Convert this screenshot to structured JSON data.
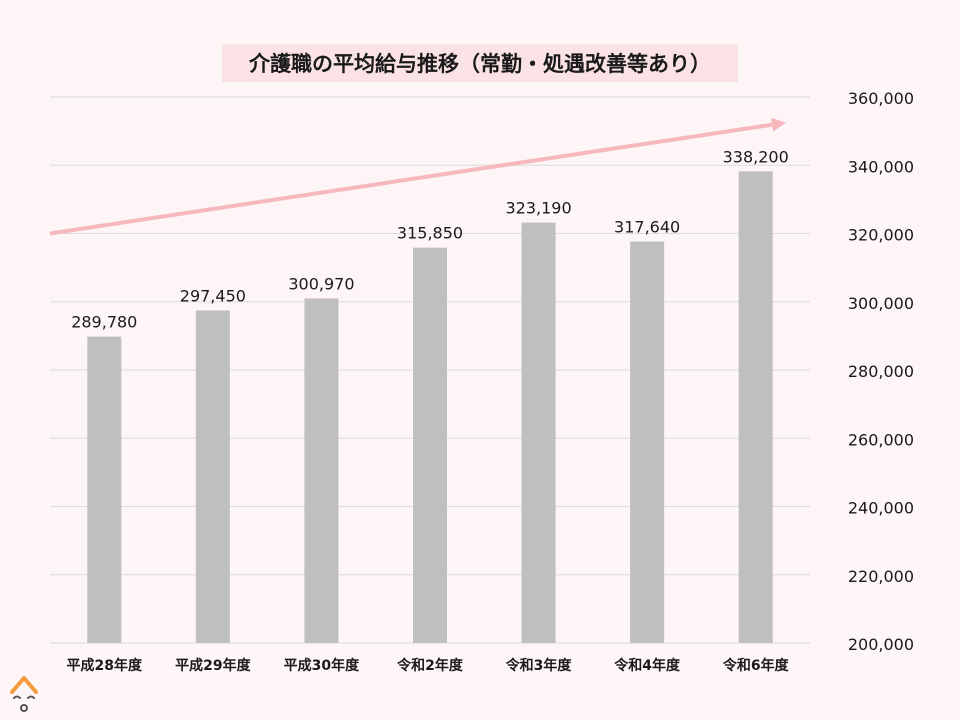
{
  "chart_data": {
    "type": "bar",
    "title": "介護職の平均給与推移（常勤・処遇改善等あり）",
    "categories": [
      "平成28年度",
      "平成29年度",
      "平成30年度",
      "令和2年度",
      "令和3年度",
      "令和4年度",
      "令和6年度"
    ],
    "values": [
      289780,
      297450,
      300970,
      315850,
      323190,
      317640,
      338200
    ],
    "value_labels": [
      "289,780",
      "297,450",
      "300,970",
      "315,850",
      "323,190",
      "317,640",
      "338,200"
    ],
    "y_ticks": [
      "200,000",
      "220,000",
      "240,000",
      "260,000",
      "280,000",
      "300,000",
      "320,000",
      "340,000",
      "360,000"
    ],
    "y_tick_values": [
      200000,
      220000,
      240000,
      260000,
      280000,
      300000,
      320000,
      340000,
      360000
    ],
    "ylim": [
      200000,
      360000
    ],
    "y_axis_position": "right",
    "grid": true,
    "legend": "none",
    "trend_arrow": {
      "from_value": 320000,
      "to_value": 352500,
      "direction": "up"
    },
    "colors": {
      "bar": "#bfbfbf",
      "arrow": "#f7b8bd",
      "title_background": "#fbe3e5",
      "background": "#fdf5f6",
      "grid": "#dcdcdc"
    }
  },
  "logo": {
    "icon": "face-logo-icon"
  }
}
